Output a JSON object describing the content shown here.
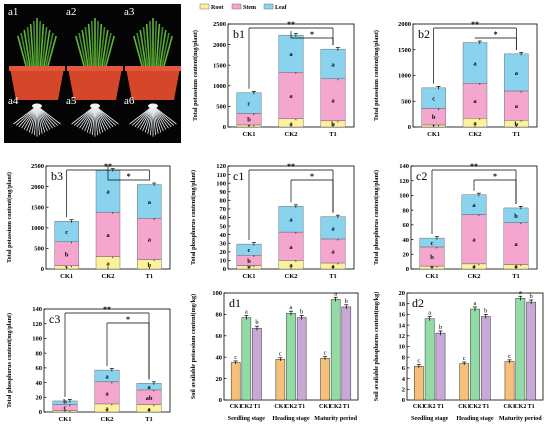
{
  "colors": {
    "root": "#fbf29b",
    "stem": "#f4a6cf",
    "leaf": "#8ad3ee",
    "d_ck1": "#f5c07a",
    "d_ck2": "#93dba6",
    "d_t1": "#c7a8d6",
    "bracket": "#000000"
  },
  "photo": {
    "labels": [
      "a1",
      "a2",
      "a3",
      "a4",
      "a5",
      "a6"
    ],
    "pot_color": "#d6462b",
    "background": "#050505"
  },
  "legend": {
    "root": "Root",
    "stem": "Stem",
    "leaf": "Leaf"
  },
  "chart_data": [
    {
      "id": "b1",
      "type": "bar",
      "stacked": true,
      "ylabel": "Total potassium content(mg/plant)",
      "ylim": [
        0,
        2500
      ],
      "yticks": [
        0,
        500,
        1000,
        1500,
        2000,
        2500
      ],
      "categories": [
        "CK1",
        "CK2",
        "T1"
      ],
      "series": [
        {
          "name": "Root",
          "values": [
            50,
            200,
            150
          ],
          "letters": [
            "c",
            "a",
            "b"
          ]
        },
        {
          "name": "Stem",
          "values": [
            280,
            1130,
            1020
          ],
          "letters": [
            "b",
            "a",
            "a"
          ]
        },
        {
          "name": "Leaf",
          "values": [
            500,
            900,
            720
          ],
          "letters": [
            "c",
            "a",
            "a"
          ]
        }
      ],
      "totals_error": [
        30,
        40,
        40
      ],
      "brackets": [
        {
          "from": 0,
          "to": 2,
          "label": "**"
        },
        {
          "from": 1,
          "to": 2,
          "label": "*"
        }
      ],
      "legend": true
    },
    {
      "id": "b2",
      "type": "bar",
      "stacked": true,
      "ylabel": "Total potassium content(mg/plant)",
      "ylim": [
        0,
        2000
      ],
      "yticks": [
        0,
        500,
        1000,
        1500,
        2000
      ],
      "categories": [
        "CK1",
        "CK2",
        "T1"
      ],
      "series": [
        {
          "name": "Root",
          "values": [
            40,
            170,
            130
          ],
          "letters": [
            "c",
            "a",
            "b"
          ]
        },
        {
          "name": "Stem",
          "values": [
            320,
            680,
            570
          ],
          "letters": [
            "b",
            "a",
            "a"
          ]
        },
        {
          "name": "Leaf",
          "values": [
            400,
            790,
            720
          ],
          "letters": [
            "c",
            "a",
            "a"
          ]
        }
      ],
      "totals_error": [
        20,
        40,
        30
      ],
      "brackets": [
        {
          "from": 0,
          "to": 2,
          "label": "**"
        },
        {
          "from": 1,
          "to": 2,
          "label": "*"
        }
      ],
      "legend": false
    },
    {
      "id": "b3",
      "type": "bar",
      "stacked": true,
      "ylabel": "Total potassium content(mg/plant)",
      "ylim": [
        0,
        2500
      ],
      "yticks": [
        0,
        500,
        1000,
        1500,
        2000,
        2500
      ],
      "categories": [
        "CK1",
        "CK2",
        "T1"
      ],
      "series": [
        {
          "name": "Root",
          "values": [
            80,
            300,
            230
          ],
          "letters": [
            "c",
            "a",
            "b"
          ]
        },
        {
          "name": "Stem",
          "values": [
            580,
            1080,
            1000
          ],
          "letters": [
            "b",
            "a",
            "a"
          ]
        },
        {
          "name": "Leaf",
          "values": [
            500,
            1020,
            820
          ],
          "letters": [
            "c",
            "a",
            "a"
          ]
        }
      ],
      "totals_error": [
        10,
        30,
        40
      ],
      "brackets": [
        {
          "from": 0,
          "to": 2,
          "label": "**"
        },
        {
          "from": 1,
          "to": 2,
          "label": "*"
        }
      ],
      "legend": false
    },
    {
      "id": "c1",
      "type": "bar",
      "stacked": true,
      "ylabel": "Total phosphorus content(mg/plant)",
      "ylim": [
        0,
        120
      ],
      "yticks": [
        0,
        10,
        20,
        30,
        40,
        50,
        60,
        70,
        80,
        90,
        100,
        110,
        120
      ],
      "categories": [
        "CK1",
        "CK2",
        "T1"
      ],
      "series": [
        {
          "name": "Root",
          "values": [
            4,
            10,
            7
          ],
          "letters": [
            "b",
            "a",
            "a"
          ]
        },
        {
          "name": "Stem",
          "values": [
            12,
            33,
            28
          ],
          "letters": [
            "b",
            "a",
            "a"
          ]
        },
        {
          "name": "Leaf",
          "values": [
            13,
            30,
            26
          ],
          "letters": [
            "c",
            "a",
            "a"
          ]
        }
      ],
      "totals_error": [
        2,
        5,
        3
      ],
      "brackets": [
        {
          "from": 0,
          "to": 2,
          "label": "**"
        },
        {
          "from": 1,
          "to": 2,
          "label": "*"
        }
      ],
      "legend": false
    },
    {
      "id": "c2",
      "type": "bar",
      "stacked": true,
      "ylabel": "Total phosphorus content(mg/plant)",
      "ylim": [
        0,
        140
      ],
      "yticks": [
        0,
        20,
        40,
        60,
        80,
        100,
        120,
        140
      ],
      "categories": [
        "CK1",
        "CK2",
        "T1"
      ],
      "series": [
        {
          "name": "Root",
          "values": [
            4,
            7,
            6
          ],
          "letters": [
            "b",
            "a",
            "a"
          ]
        },
        {
          "name": "Stem",
          "values": [
            26,
            67,
            57
          ],
          "letters": [
            "b",
            "a",
            "a"
          ]
        },
        {
          "name": "Leaf",
          "values": [
            12,
            27,
            20
          ],
          "letters": [
            "c",
            "a",
            "b"
          ]
        }
      ],
      "totals_error": [
        4,
        5,
        3
      ],
      "brackets": [
        {
          "from": 0,
          "to": 2,
          "label": "**"
        },
        {
          "from": 1,
          "to": 2,
          "label": "*"
        }
      ],
      "legend": false
    },
    {
      "id": "c3",
      "type": "bar",
      "stacked": true,
      "ylabel": "Total phosphorus content(mg/plant)",
      "ylim": [
        0,
        140
      ],
      "yticks": [
        0,
        20,
        40,
        60,
        80,
        100,
        120,
        140
      ],
      "categories": [
        "CK1",
        "CK2",
        "T1"
      ],
      "series": [
        {
          "name": "Root",
          "values": [
            2,
            11,
            10
          ],
          "letters": [
            "b",
            "a",
            "a"
          ]
        },
        {
          "name": "Stem",
          "values": [
            8,
            30,
            20
          ],
          "letters": [
            "c",
            "a",
            "ab"
          ]
        },
        {
          "name": "Leaf",
          "values": [
            5,
            16,
            9
          ],
          "letters": [
            "b",
            "a",
            "a"
          ]
        }
      ],
      "totals_error": [
        1,
        4,
        2
      ],
      "brackets": [
        {
          "from": 0,
          "to": 2,
          "label": "**"
        },
        {
          "from": 1,
          "to": 2,
          "label": "*"
        }
      ],
      "legend": false
    },
    {
      "id": "d1",
      "type": "bar",
      "stacked": false,
      "ylabel": "Soil available potassium content(mg/kg)",
      "ylim": [
        0,
        100
      ],
      "yticks": [
        0,
        20,
        40,
        60,
        80,
        100
      ],
      "groups": [
        "Seedling stage",
        "Heading stage",
        "Maturity period"
      ],
      "categories": [
        "CK1",
        "CK2",
        "T1"
      ],
      "values": [
        [
          35,
          77,
          67
        ],
        [
          38,
          81,
          77
        ],
        [
          39,
          94,
          87
        ]
      ],
      "errors": [
        [
          1.5,
          2,
          2
        ],
        [
          1.5,
          2,
          2
        ],
        [
          1.5,
          2,
          2
        ]
      ],
      "letters": [
        [
          "c",
          "a",
          "b"
        ],
        [
          "c",
          "a",
          "b"
        ],
        [
          "c",
          "a",
          "b"
        ]
      ]
    },
    {
      "id": "d2",
      "type": "bar",
      "stacked": false,
      "ylabel": "Soil available phosphorus content(mg/kg)",
      "ylim": [
        0,
        20
      ],
      "yticks": [
        0,
        2,
        4,
        6,
        8,
        10,
        12,
        14,
        16,
        18,
        20
      ],
      "groups": [
        "Seedling stage",
        "Heading stage",
        "Maturity period"
      ],
      "categories": [
        "CK1",
        "CK2",
        "T1"
      ],
      "values": [
        [
          6.3,
          15.2,
          12.5
        ],
        [
          6.8,
          17,
          15.6
        ],
        [
          7.2,
          19,
          18.3
        ]
      ],
      "errors": [
        [
          0.3,
          0.4,
          0.4
        ],
        [
          0.3,
          0.4,
          0.4
        ],
        [
          0.3,
          0.4,
          0.4
        ]
      ],
      "letters": [
        [
          "c",
          "a",
          "b"
        ],
        [
          "c",
          "a",
          "b"
        ],
        [
          "c",
          "a",
          "b"
        ]
      ]
    }
  ]
}
